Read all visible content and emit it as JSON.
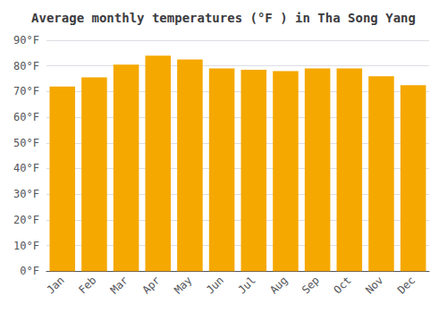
{
  "chart_data": {
    "type": "bar",
    "title": "Average monthly temperatures (°F ) in Tha Song Yang",
    "categories": [
      "Jan",
      "Feb",
      "Mar",
      "Apr",
      "May",
      "Jun",
      "Jul",
      "Aug",
      "Sep",
      "Oct",
      "Nov",
      "Dec"
    ],
    "values": [
      72,
      75.5,
      80.5,
      84,
      82.5,
      79,
      78.5,
      78,
      79,
      79,
      76,
      72.5
    ],
    "color": "#F5A800",
    "ylim": [
      0,
      90
    ],
    "yticks": [
      {
        "value": 0,
        "label": "0°F"
      },
      {
        "value": 10,
        "label": "10°F"
      },
      {
        "value": 20,
        "label": "20°F"
      },
      {
        "value": 30,
        "label": "30°F"
      },
      {
        "value": 40,
        "label": "40°F"
      },
      {
        "value": 50,
        "label": "50°F"
      },
      {
        "value": 60,
        "label": "60°F"
      },
      {
        "value": 70,
        "label": "70°F"
      },
      {
        "value": 80,
        "label": "80°F"
      },
      {
        "value": 90,
        "label": "90°F"
      }
    ],
    "grid": true
  }
}
